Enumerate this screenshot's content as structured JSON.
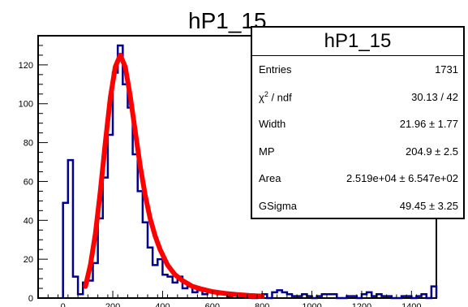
{
  "chart_data": {
    "type": "histogram",
    "title": "hP1_15",
    "xlim": [
      -100,
      1500
    ],
    "ylim": [
      0,
      135
    ],
    "x_ticks": [
      0,
      200,
      400,
      600,
      800,
      1000,
      1200,
      1400
    ],
    "y_ticks": [
      20,
      40,
      60,
      80,
      100,
      120
    ],
    "bin_width": 20,
    "bins_start": [
      0,
      20,
      40,
      60,
      80,
      100,
      120,
      140,
      160,
      180,
      200,
      220,
      240,
      260,
      280,
      300,
      320,
      340,
      360,
      380,
      400,
      420,
      440,
      460,
      480,
      500,
      520,
      540,
      560,
      580,
      600,
      620,
      640,
      660,
      680,
      700,
      720,
      740,
      760,
      780,
      800,
      820,
      840,
      860,
      880,
      900,
      920,
      940,
      960,
      980,
      1000,
      1020,
      1040,
      1060,
      1080,
      1100,
      1120,
      1140,
      1160,
      1180,
      1200,
      1220,
      1240,
      1260,
      1280,
      1300,
      1320,
      1340,
      1360,
      1380,
      1400,
      1420,
      1440,
      1460,
      1480
    ],
    "counts": [
      49,
      71,
      11,
      2,
      8,
      9,
      18,
      41,
      62,
      84,
      116,
      130,
      110,
      98,
      74,
      55,
      39,
      26,
      17,
      20,
      12,
      11,
      8,
      11,
      5,
      6,
      3,
      4,
      2,
      3,
      3,
      2,
      2,
      1,
      2,
      1,
      2,
      1,
      0,
      1,
      2,
      0,
      3,
      4,
      3,
      2,
      1,
      1,
      2,
      1,
      0,
      1,
      2,
      2,
      2,
      0,
      0,
      1,
      1,
      0,
      2,
      3,
      1,
      2,
      1,
      1,
      0,
      0,
      1,
      1,
      0,
      1,
      2,
      0,
      6
    ],
    "fit": {
      "type": "landau-gaussian",
      "x_range": [
        90,
        800
      ],
      "x": [
        90,
        110,
        130,
        150,
        170,
        190,
        210,
        230,
        250,
        270,
        290,
        310,
        330,
        350,
        370,
        390,
        420,
        450,
        480,
        520,
        560,
        600,
        650,
        700,
        750,
        800
      ],
      "y": [
        6,
        17,
        33,
        55,
        80,
        103,
        119,
        125,
        119,
        104,
        86,
        68,
        53,
        41,
        32,
        25,
        17,
        12,
        9,
        6,
        4.5,
        3.3,
        2.4,
        1.8,
        1.3,
        1
      ]
    },
    "stats": {
      "title": "hP1_15",
      "entries": "1731",
      "chi2_ndf": "30.13 / 42",
      "width": "21.96 ± 1.77",
      "mp": "204.9 ± 2.5",
      "area": "2.519e+04 ± 6.547e+02",
      "gsigma": "49.45 ± 3.25"
    },
    "colors": {
      "histogram": "#00008b",
      "fit": "#ff0000"
    }
  },
  "labels": {
    "entries": "Entries",
    "chi2": "χ",
    "chi2_sup": "2",
    "chi2_rest": " / ndf",
    "width": "Width",
    "mp": "MP",
    "area": "Area",
    "gsigma": "GSigma"
  }
}
